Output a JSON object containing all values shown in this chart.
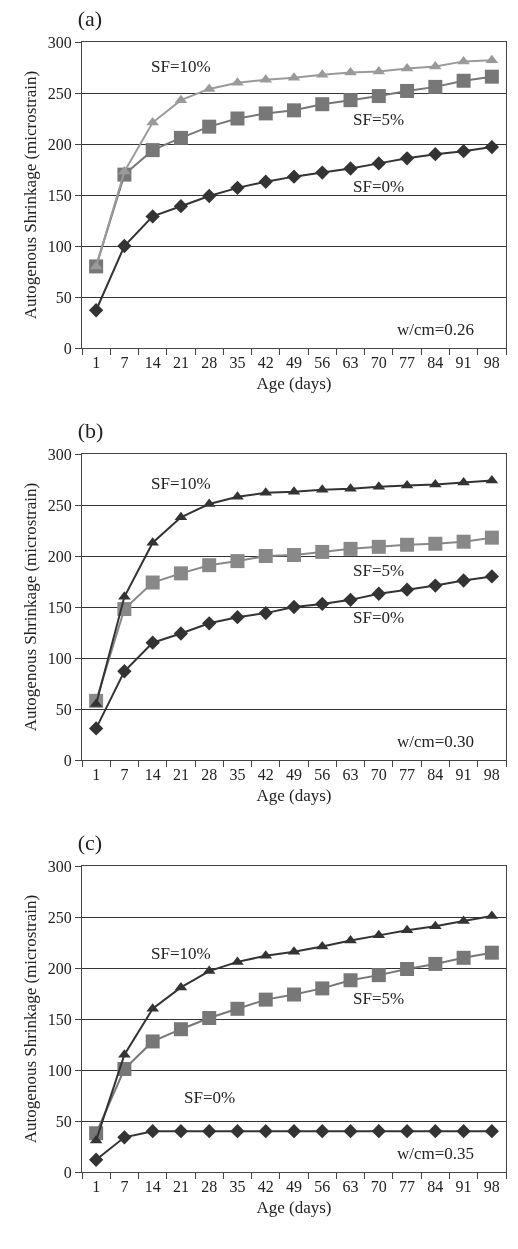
{
  "chart_data": [
    {
      "type": "line",
      "title": "(a)",
      "xlabel": "Age (days)",
      "ylabel": "Autogenous Shrinkage (microstrain)",
      "categories": [
        "1",
        "7",
        "14",
        "21",
        "28",
        "35",
        "42",
        "49",
        "56",
        "63",
        "70",
        "77",
        "84",
        "91",
        "98"
      ],
      "ylim": [
        0,
        300
      ],
      "yticks": [
        0,
        50,
        100,
        150,
        200,
        250,
        300
      ],
      "grid": "y",
      "legend": false,
      "series": [
        {
          "name": "SF=0%",
          "color": "#333333",
          "marker": "diamond",
          "values": [
            37,
            100,
            129,
            139,
            149,
            157,
            163,
            168,
            172,
            176,
            181,
            186,
            190,
            193,
            197
          ]
        },
        {
          "name": "SF=5%",
          "color": "#777777",
          "marker": "square",
          "values": [
            80,
            170,
            194,
            206,
            217,
            225,
            230,
            233,
            239,
            243,
            247,
            252,
            256,
            262,
            266
          ]
        },
        {
          "name": "SF=10%",
          "color": "#9a9a9a",
          "marker": "triangle",
          "values": [
            80,
            173,
            221,
            243,
            254,
            260,
            263,
            265,
            268,
            270,
            271,
            274,
            276,
            281,
            282
          ]
        }
      ],
      "annotations": [
        "w/cm=0.26"
      ]
    },
    {
      "type": "line",
      "title": "(b)",
      "xlabel": "Age (days)",
      "ylabel": "Autogenous Shrinkage (microstrain)",
      "categories": [
        "1",
        "7",
        "14",
        "21",
        "28",
        "35",
        "42",
        "49",
        "56",
        "63",
        "70",
        "77",
        "84",
        "91",
        "98"
      ],
      "ylim": [
        0,
        300
      ],
      "yticks": [
        0,
        50,
        100,
        150,
        200,
        250,
        300
      ],
      "grid": "y",
      "legend": false,
      "series": [
        {
          "name": "SF=0%",
          "color": "#333333",
          "marker": "diamond",
          "values": [
            31,
            87,
            115,
            124,
            134,
            140,
            144,
            150,
            153,
            157,
            163,
            167,
            171,
            176,
            180
          ]
        },
        {
          "name": "SF=5%",
          "color": "#888888",
          "marker": "square",
          "values": [
            58,
            148,
            174,
            183,
            191,
            195,
            200,
            201,
            204,
            207,
            209,
            211,
            212,
            214,
            218
          ]
        },
        {
          "name": "SF=10%",
          "color": "#333333",
          "marker": "triangle",
          "values": [
            55,
            160,
            213,
            238,
            251,
            258,
            262,
            263,
            265,
            266,
            268,
            269,
            270,
            272,
            274
          ]
        }
      ],
      "annotations": [
        "w/cm=0.30"
      ]
    },
    {
      "type": "line",
      "title": "(c)",
      "xlabel": "Age (days)",
      "ylabel": "Autogenous Shrinkage (microstrain)",
      "categories": [
        "1",
        "7",
        "14",
        "21",
        "28",
        "35",
        "42",
        "49",
        "56",
        "63",
        "70",
        "77",
        "84",
        "91",
        "98"
      ],
      "ylim": [
        0,
        300
      ],
      "yticks": [
        0,
        50,
        100,
        150,
        200,
        250,
        300
      ],
      "grid": "y",
      "legend": false,
      "series": [
        {
          "name": "SF=0%",
          "color": "#333333",
          "marker": "diamond",
          "values": [
            12,
            34,
            40,
            40,
            40,
            40,
            40,
            40,
            40,
            40,
            40,
            40,
            40,
            40,
            40
          ]
        },
        {
          "name": "SF=5%",
          "color": "#777777",
          "marker": "square",
          "values": [
            38,
            101,
            128,
            140,
            151,
            160,
            169,
            174,
            180,
            188,
            193,
            199,
            204,
            210,
            215
          ]
        },
        {
          "name": "SF=10%",
          "color": "#333333",
          "marker": "triangle",
          "values": [
            31,
            115,
            160,
            181,
            197,
            206,
            212,
            216,
            221,
            227,
            232,
            237,
            241,
            246,
            251
          ]
        }
      ],
      "annotations": [
        "w/cm=0.35"
      ]
    }
  ]
}
